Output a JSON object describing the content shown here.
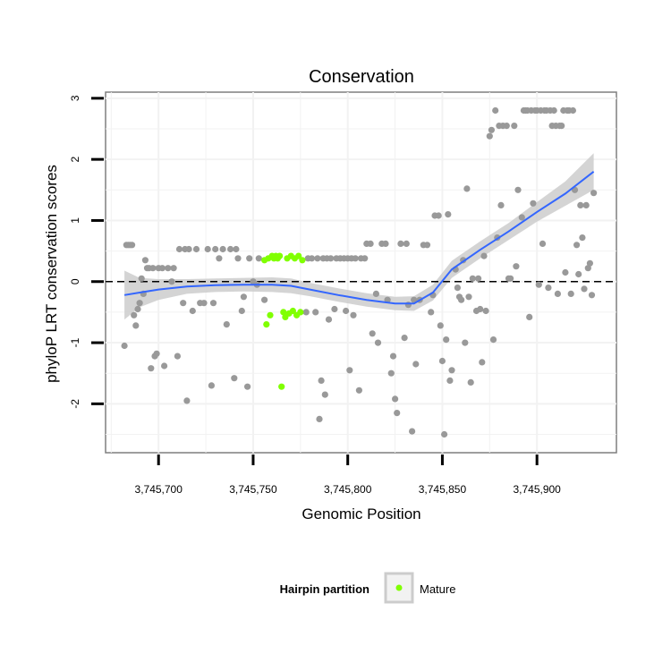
{
  "chart_data": {
    "type": "scatter",
    "title": "Conservation",
    "xlabel": "Genomic Position",
    "ylabel": "phyloP LRT conservation scores",
    "xlim": [
      3745672,
      3745942
    ],
    "ylim": [
      -2.8,
      3.1
    ],
    "x_ticks": [
      3745700,
      3745750,
      3745800,
      3745850,
      3745900
    ],
    "x_tick_labels": [
      "3,745,700",
      "3,745,750",
      "3,745,800",
      "3,745,850",
      "3,745,900"
    ],
    "y_ticks": [
      -2,
      -1,
      0,
      1,
      2,
      3
    ],
    "y_tick_labels": [
      "-2",
      "-1",
      "0",
      "1",
      "2",
      "3"
    ],
    "grid": true,
    "reference_line": {
      "y": 0,
      "style": "dashed",
      "color": "#000000"
    },
    "legend": {
      "title": "Hairpin partition",
      "placement": "bottom",
      "entries": [
        {
          "label": "Mature",
          "color": "#80ff00"
        }
      ]
    },
    "series": [
      {
        "kind": "points",
        "color": "#999999",
        "points": [
          [
            3745682,
            -1.05
          ],
          [
            3745683,
            0.6
          ],
          [
            3745684,
            0.6
          ],
          [
            3745685,
            0.6
          ],
          [
            3745686,
            0.6
          ],
          [
            3745687,
            -0.55
          ],
          [
            3745688,
            -0.72
          ],
          [
            3745689,
            -0.45
          ],
          [
            3745690,
            -0.35
          ],
          [
            3745691,
            0.05
          ],
          [
            3745692,
            -0.2
          ],
          [
            3745693,
            0.35
          ],
          [
            3745694,
            0.22
          ],
          [
            3745695,
            0.22
          ],
          [
            3745696,
            -1.42
          ],
          [
            3745697,
            0.22
          ],
          [
            3745698,
            -1.22
          ],
          [
            3745699,
            -1.18
          ],
          [
            3745700,
            0.22
          ],
          [
            3745702,
            0.22
          ],
          [
            3745703,
            -1.38
          ],
          [
            3745705,
            0.22
          ],
          [
            3745707,
            0.0
          ],
          [
            3745708,
            0.22
          ],
          [
            3745710,
            -1.22
          ],
          [
            3745711,
            0.53
          ],
          [
            3745713,
            -0.35
          ],
          [
            3745714,
            0.53
          ],
          [
            3745715,
            -1.95
          ],
          [
            3745716,
            0.53
          ],
          [
            3745718,
            -0.48
          ],
          [
            3745720,
            0.53
          ],
          [
            3745722,
            -0.35
          ],
          [
            3745724,
            -0.35
          ],
          [
            3745726,
            0.53
          ],
          [
            3745728,
            -1.7
          ],
          [
            3745729,
            -0.35
          ],
          [
            3745730,
            0.53
          ],
          [
            3745732,
            0.38
          ],
          [
            3745734,
            0.53
          ],
          [
            3745736,
            -0.7
          ],
          [
            3745738,
            0.53
          ],
          [
            3745740,
            -1.58
          ],
          [
            3745741,
            0.53
          ],
          [
            3745742,
            0.38
          ],
          [
            3745744,
            -0.48
          ],
          [
            3745745,
            -0.25
          ],
          [
            3745747,
            -1.72
          ],
          [
            3745748,
            0.38
          ],
          [
            3745750,
            0.0
          ],
          [
            3745752,
            -0.05
          ],
          [
            3745753,
            0.38
          ],
          [
            3745756,
            -0.3
          ],
          [
            3745778,
            -0.5
          ],
          [
            3745779,
            0.38
          ],
          [
            3745781,
            0.38
          ],
          [
            3745783,
            -0.5
          ],
          [
            3745784,
            0.38
          ],
          [
            3745785,
            -2.25
          ],
          [
            3745786,
            -1.62
          ],
          [
            3745787,
            0.38
          ],
          [
            3745788,
            -1.85
          ],
          [
            3745789,
            0.38
          ],
          [
            3745790,
            -0.62
          ],
          [
            3745791,
            0.38
          ],
          [
            3745793,
            -0.45
          ],
          [
            3745794,
            0.38
          ],
          [
            3745796,
            0.38
          ],
          [
            3745798,
            0.38
          ],
          [
            3745799,
            -0.48
          ],
          [
            3745800,
            0.38
          ],
          [
            3745801,
            -1.45
          ],
          [
            3745802,
            0.38
          ],
          [
            3745803,
            -0.55
          ],
          [
            3745804,
            0.38
          ],
          [
            3745806,
            -1.78
          ],
          [
            3745807,
            0.38
          ],
          [
            3745809,
            0.38
          ],
          [
            3745810,
            0.62
          ],
          [
            3745812,
            0.62
          ],
          [
            3745813,
            -0.85
          ],
          [
            3745815,
            -0.2
          ],
          [
            3745816,
            -1.0
          ],
          [
            3745818,
            0.62
          ],
          [
            3745820,
            0.62
          ],
          [
            3745821,
            -0.3
          ],
          [
            3745823,
            -1.5
          ],
          [
            3745824,
            -1.22
          ],
          [
            3745825,
            -1.92
          ],
          [
            3745826,
            -2.15
          ],
          [
            3745828,
            0.62
          ],
          [
            3745830,
            -0.92
          ],
          [
            3745831,
            0.62
          ],
          [
            3745832,
            -0.38
          ],
          [
            3745834,
            -2.45
          ],
          [
            3745835,
            -0.3
          ],
          [
            3745836,
            -1.35
          ],
          [
            3745838,
            -0.3
          ],
          [
            3745840,
            0.6
          ],
          [
            3745842,
            0.6
          ],
          [
            3745844,
            -0.5
          ],
          [
            3745845,
            -0.22
          ],
          [
            3745846,
            1.08
          ],
          [
            3745848,
            1.08
          ],
          [
            3745849,
            -0.72
          ],
          [
            3745850,
            -1.3
          ],
          [
            3745851,
            -2.5
          ],
          [
            3745852,
            -0.95
          ],
          [
            3745853,
            1.1
          ],
          [
            3745854,
            -1.62
          ],
          [
            3745855,
            -1.45
          ],
          [
            3745857,
            0.2
          ],
          [
            3745858,
            -0.1
          ],
          [
            3745859,
            -0.25
          ],
          [
            3745860,
            -0.3
          ],
          [
            3745861,
            0.35
          ],
          [
            3745862,
            -1.0
          ],
          [
            3745863,
            1.52
          ],
          [
            3745864,
            -0.25
          ],
          [
            3745865,
            -1.65
          ],
          [
            3745866,
            0.05
          ],
          [
            3745868,
            -0.48
          ],
          [
            3745869,
            0.05
          ],
          [
            3745870,
            -0.45
          ],
          [
            3745871,
            -1.32
          ],
          [
            3745872,
            0.42
          ],
          [
            3745873,
            -0.48
          ],
          [
            3745875,
            2.38
          ],
          [
            3745876,
            2.48
          ],
          [
            3745877,
            -0.95
          ],
          [
            3745878,
            2.8
          ],
          [
            3745879,
            0.72
          ],
          [
            3745880,
            2.55
          ],
          [
            3745881,
            1.25
          ],
          [
            3745882,
            2.55
          ],
          [
            3745884,
            2.55
          ],
          [
            3745885,
            0.05
          ],
          [
            3745886,
            0.05
          ],
          [
            3745888,
            2.55
          ],
          [
            3745889,
            0.25
          ],
          [
            3745890,
            1.5
          ],
          [
            3745892,
            1.05
          ],
          [
            3745893,
            2.8
          ],
          [
            3745894,
            2.8
          ],
          [
            3745895,
            2.8
          ],
          [
            3745896,
            -0.58
          ],
          [
            3745897,
            2.8
          ],
          [
            3745898,
            1.28
          ],
          [
            3745899,
            2.8
          ],
          [
            3745900,
            2.8
          ],
          [
            3745901,
            -0.05
          ],
          [
            3745902,
            2.8
          ],
          [
            3745903,
            0.62
          ],
          [
            3745904,
            2.8
          ],
          [
            3745905,
            2.8
          ],
          [
            3745906,
            -0.1
          ],
          [
            3745907,
            2.8
          ],
          [
            3745908,
            2.55
          ],
          [
            3745909,
            2.8
          ],
          [
            3745910,
            2.55
          ],
          [
            3745911,
            -0.2
          ],
          [
            3745912,
            2.55
          ],
          [
            3745913,
            2.55
          ],
          [
            3745914,
            2.8
          ],
          [
            3745915,
            0.15
          ],
          [
            3745916,
            2.8
          ],
          [
            3745917,
            2.8
          ],
          [
            3745918,
            -0.2
          ],
          [
            3745919,
            2.8
          ],
          [
            3745920,
            1.5
          ],
          [
            3745921,
            0.6
          ],
          [
            3745922,
            0.12
          ],
          [
            3745923,
            1.25
          ],
          [
            3745924,
            0.72
          ],
          [
            3745925,
            -0.12
          ],
          [
            3745926,
            1.25
          ],
          [
            3745927,
            0.22
          ],
          [
            3745928,
            0.3
          ],
          [
            3745929,
            -0.22
          ],
          [
            3745930,
            1.45
          ]
        ]
      },
      {
        "name": "Mature",
        "kind": "points",
        "color": "#80ff00",
        "points": [
          [
            3745756,
            0.35
          ],
          [
            3745757,
            -0.7
          ],
          [
            3745758,
            0.38
          ],
          [
            3745759,
            -0.55
          ],
          [
            3745760,
            0.42
          ],
          [
            3745761,
            0.38
          ],
          [
            3745762,
            0.42
          ],
          [
            3745763,
            0.38
          ],
          [
            3745764,
            0.42
          ],
          [
            3745765,
            -1.72
          ],
          [
            3745766,
            -0.5
          ],
          [
            3745767,
            -0.58
          ],
          [
            3745768,
            0.38
          ],
          [
            3745769,
            -0.52
          ],
          [
            3745770,
            0.42
          ],
          [
            3745771,
            -0.48
          ],
          [
            3745772,
            0.38
          ],
          [
            3745773,
            -0.55
          ],
          [
            3745774,
            0.42
          ],
          [
            3745775,
            -0.5
          ],
          [
            3745776,
            0.35
          ]
        ]
      },
      {
        "kind": "smooth",
        "color": "#3366ff",
        "ribbon_color": "#cccccc",
        "points": [
          [
            3745682,
            -0.22,
            -0.62,
            0.18
          ],
          [
            3745690,
            -0.18,
            -0.42,
            0.06
          ],
          [
            3745700,
            -0.13,
            -0.3,
            0.04
          ],
          [
            3745715,
            -0.08,
            -0.2,
            0.04
          ],
          [
            3745730,
            -0.06,
            -0.17,
            0.05
          ],
          [
            3745745,
            -0.05,
            -0.16,
            0.06
          ],
          [
            3745760,
            -0.05,
            -0.17,
            0.07
          ],
          [
            3745770,
            -0.07,
            -0.19,
            0.05
          ],
          [
            3745780,
            -0.13,
            -0.24,
            -0.02
          ],
          [
            3745795,
            -0.22,
            -0.33,
            -0.11
          ],
          [
            3745810,
            -0.3,
            -0.41,
            -0.19
          ],
          [
            3745825,
            -0.36,
            -0.47,
            -0.25
          ],
          [
            3745835,
            -0.36,
            -0.48,
            -0.24
          ],
          [
            3745845,
            -0.18,
            -0.31,
            -0.05
          ],
          [
            3745855,
            0.2,
            0.06,
            0.34
          ],
          [
            3745870,
            0.52,
            0.38,
            0.66
          ],
          [
            3745885,
            0.82,
            0.68,
            0.96
          ],
          [
            3745900,
            1.14,
            0.98,
            1.3
          ],
          [
            3745915,
            1.44,
            1.24,
            1.64
          ],
          [
            3745930,
            1.8,
            1.5,
            2.1
          ]
        ]
      }
    ]
  }
}
